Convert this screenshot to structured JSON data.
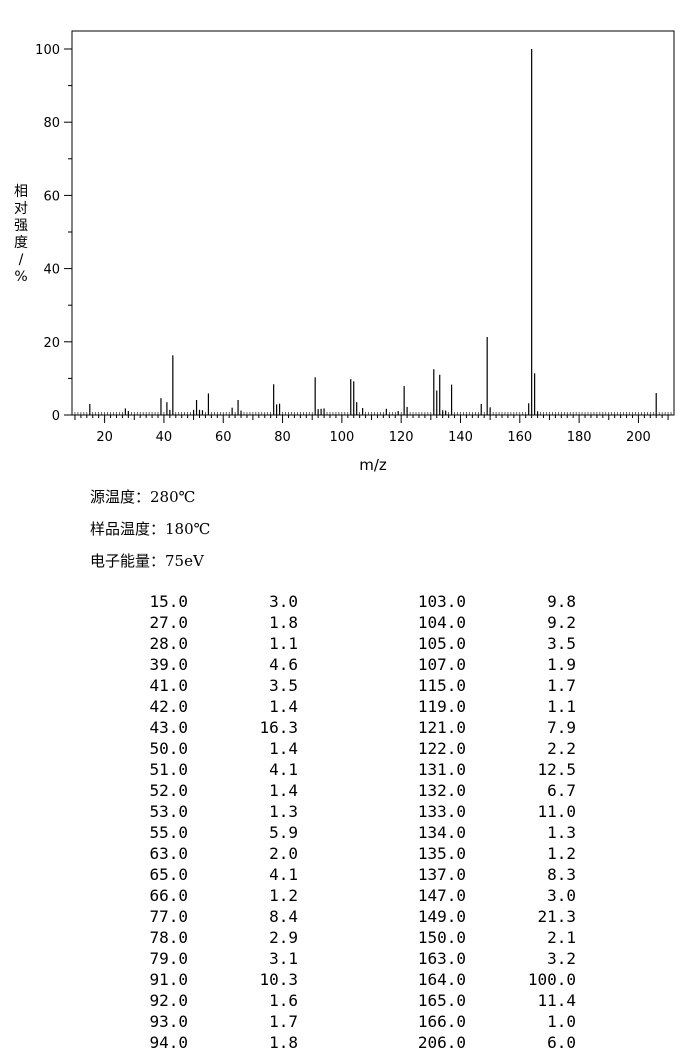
{
  "chart_data": {
    "type": "bar",
    "xlabel": "m/z",
    "ylabel": "相对强度/%",
    "xlim": [
      9,
      212
    ],
    "ylim": [
      0,
      100
    ],
    "x_ticks": [
      20,
      40,
      60,
      80,
      100,
      120,
      140,
      160,
      180,
      200
    ],
    "y_ticks": [
      0,
      20,
      40,
      60,
      80,
      100
    ],
    "peaks": [
      {
        "mz": 15.0,
        "intensity": 3.0
      },
      {
        "mz": 27.0,
        "intensity": 1.8
      },
      {
        "mz": 28.0,
        "intensity": 1.1
      },
      {
        "mz": 39.0,
        "intensity": 4.6
      },
      {
        "mz": 41.0,
        "intensity": 3.5
      },
      {
        "mz": 42.0,
        "intensity": 1.4
      },
      {
        "mz": 43.0,
        "intensity": 16.3
      },
      {
        "mz": 50.0,
        "intensity": 1.4
      },
      {
        "mz": 51.0,
        "intensity": 4.1
      },
      {
        "mz": 52.0,
        "intensity": 1.4
      },
      {
        "mz": 53.0,
        "intensity": 1.3
      },
      {
        "mz": 55.0,
        "intensity": 5.9
      },
      {
        "mz": 63.0,
        "intensity": 2.0
      },
      {
        "mz": 65.0,
        "intensity": 4.1
      },
      {
        "mz": 66.0,
        "intensity": 1.2
      },
      {
        "mz": 77.0,
        "intensity": 8.4
      },
      {
        "mz": 78.0,
        "intensity": 2.9
      },
      {
        "mz": 79.0,
        "intensity": 3.1
      },
      {
        "mz": 91.0,
        "intensity": 10.3
      },
      {
        "mz": 92.0,
        "intensity": 1.6
      },
      {
        "mz": 93.0,
        "intensity": 1.7
      },
      {
        "mz": 94.0,
        "intensity": 1.8
      },
      {
        "mz": 103.0,
        "intensity": 9.8
      },
      {
        "mz": 104.0,
        "intensity": 9.2
      },
      {
        "mz": 105.0,
        "intensity": 3.5
      },
      {
        "mz": 107.0,
        "intensity": 1.9
      },
      {
        "mz": 115.0,
        "intensity": 1.7
      },
      {
        "mz": 119.0,
        "intensity": 1.1
      },
      {
        "mz": 121.0,
        "intensity": 7.9
      },
      {
        "mz": 122.0,
        "intensity": 2.2
      },
      {
        "mz": 131.0,
        "intensity": 12.5
      },
      {
        "mz": 132.0,
        "intensity": 6.7
      },
      {
        "mz": 133.0,
        "intensity": 11.0
      },
      {
        "mz": 134.0,
        "intensity": 1.3
      },
      {
        "mz": 135.0,
        "intensity": 1.2
      },
      {
        "mz": 137.0,
        "intensity": 8.3
      },
      {
        "mz": 147.0,
        "intensity": 3.0
      },
      {
        "mz": 149.0,
        "intensity": 21.3
      },
      {
        "mz": 150.0,
        "intensity": 2.1
      },
      {
        "mz": 163.0,
        "intensity": 3.2
      },
      {
        "mz": 164.0,
        "intensity": 100.0
      },
      {
        "mz": 165.0,
        "intensity": 11.4
      },
      {
        "mz": 166.0,
        "intensity": 1.0
      },
      {
        "mz": 206.0,
        "intensity": 6.0
      }
    ]
  },
  "meta": {
    "source_temp": "源温度：280℃",
    "sample_temp": "样品温度：180℃",
    "electron_energy": "电子能量：75eV"
  },
  "table": {
    "rows": [
      [
        "15.0",
        "3.0",
        "103.0",
        "9.8"
      ],
      [
        "27.0",
        "1.8",
        "104.0",
        "9.2"
      ],
      [
        "28.0",
        "1.1",
        "105.0",
        "3.5"
      ],
      [
        "39.0",
        "4.6",
        "107.0",
        "1.9"
      ],
      [
        "41.0",
        "3.5",
        "115.0",
        "1.7"
      ],
      [
        "42.0",
        "1.4",
        "119.0",
        "1.1"
      ],
      [
        "43.0",
        "16.3",
        "121.0",
        "7.9"
      ],
      [
        "50.0",
        "1.4",
        "122.0",
        "2.2"
      ],
      [
        "51.0",
        "4.1",
        "131.0",
        "12.5"
      ],
      [
        "52.0",
        "1.4",
        "132.0",
        "6.7"
      ],
      [
        "53.0",
        "1.3",
        "133.0",
        "11.0"
      ],
      [
        "55.0",
        "5.9",
        "134.0",
        "1.3"
      ],
      [
        "63.0",
        "2.0",
        "135.0",
        "1.2"
      ],
      [
        "65.0",
        "4.1",
        "137.0",
        "8.3"
      ],
      [
        "66.0",
        "1.2",
        "147.0",
        "3.0"
      ],
      [
        "77.0",
        "8.4",
        "149.0",
        "21.3"
      ],
      [
        "78.0",
        "2.9",
        "150.0",
        "2.1"
      ],
      [
        "79.0",
        "3.1",
        "163.0",
        "3.2"
      ],
      [
        "91.0",
        "10.3",
        "164.0",
        "100.0"
      ],
      [
        "92.0",
        "1.6",
        "165.0",
        "11.4"
      ],
      [
        "93.0",
        "1.7",
        "166.0",
        "1.0"
      ],
      [
        "94.0",
        "1.8",
        "206.0",
        "6.0"
      ]
    ]
  }
}
